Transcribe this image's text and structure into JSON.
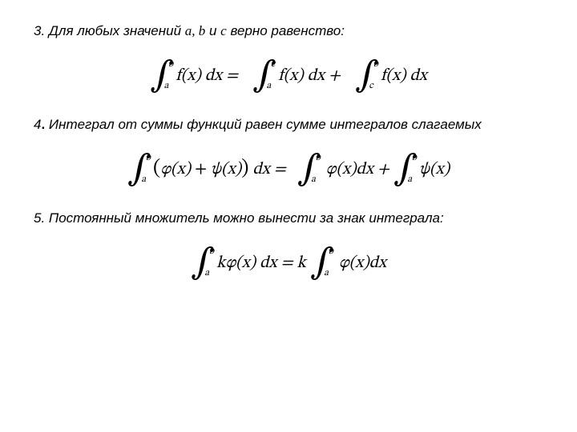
{
  "colors": {
    "text": "#000000",
    "background": "#ffffff"
  },
  "typography": {
    "body_font": "Arial",
    "body_size_pt": 13,
    "body_style": "italic",
    "math_font": "Cambria Math",
    "math_size_pt": 16,
    "int_symbol_size_pt": 33,
    "limit_size_pt": 9
  },
  "rule3": {
    "num": "3.",
    "text_a": " Для любых значений ",
    "vars": "a, b",
    "text_b": " и ",
    "var_c": "c",
    "text_c": " верно равенство:"
  },
  "formula3": {
    "t1_lo": "a",
    "t1_up": "b",
    "t1_body": "f(x) dx",
    "eq": " = ",
    "t2_lo": "a",
    "t2_up": "c",
    "t2_body": "f(x) dx",
    "plus": " + ",
    "t3_lo": "c",
    "t3_up": "b",
    "t3_body": "f(x) dx"
  },
  "rule4": {
    "num": "4",
    "dot": ".",
    "text": " Интеграл от суммы функций равен сумме интегралов слагаемых"
  },
  "formula4": {
    "t1_lo": "a",
    "t1_up": "b",
    "t1_body_open": "(",
    "t1_body_phi": "φ(x)",
    "t1_body_plus": " + ",
    "t1_body_psi": "ψ(x)",
    "t1_body_close": ")",
    "t1_body_dx": " dx",
    "eq": " = ",
    "t2_lo": "a",
    "t2_up": "b",
    "t2_body": "φ(x)dx",
    "plus": " + ",
    "t3_lo": "a",
    "t3_up": "b",
    "t3_body": "ψ(x)"
  },
  "rule5": {
    "num": "5.",
    "text": " Постоянный множитель можно вынести за знак интеграла:"
  },
  "formula5": {
    "t1_lo": "a",
    "t1_up": "b",
    "t1_body": "kφ(x) dx",
    "eq": " = ",
    "k": "k ",
    "t2_lo": "a",
    "t2_up": "b",
    "t2_body": "φ(x)dx"
  }
}
